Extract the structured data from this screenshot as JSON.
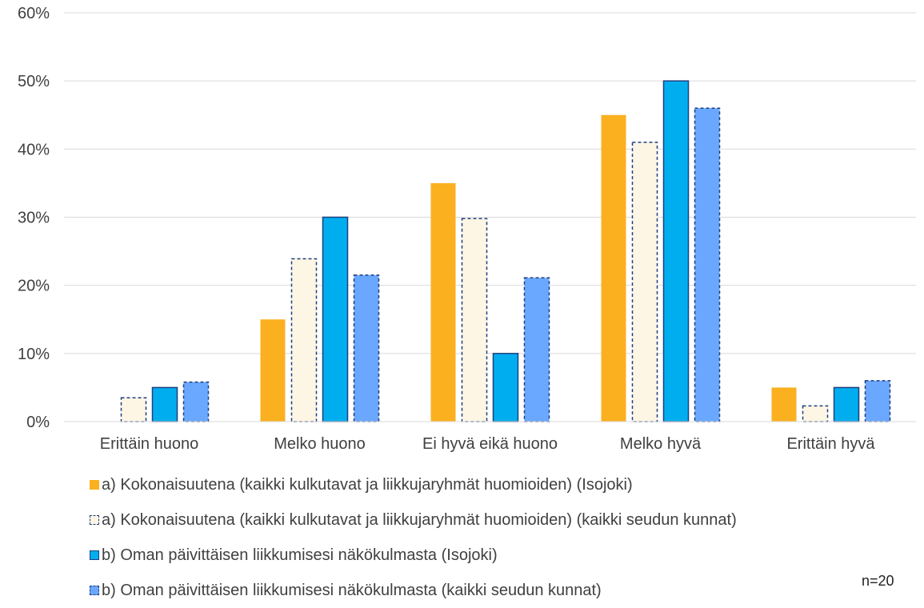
{
  "chart_data": {
    "type": "bar",
    "categories": [
      "Erittäin huono",
      "Melko huono",
      "Ei hyvä eikä huono",
      "Melko hyvä",
      "Erittäin hyvä"
    ],
    "series": [
      {
        "name": "a) Kokonaisuutena (kaikki kulkutavat ja liikkujaryhmät huomioiden) (Isojoki)",
        "values": [
          0,
          15,
          35,
          45,
          5
        ],
        "fill": "#FBB01F",
        "stroke": "none",
        "dashed": false
      },
      {
        "name": "a) Kokonaisuutena (kaikki kulkutavat ja liikkujaryhmät huomioiden) (kaikki seudun kunnat)",
        "values": [
          3.5,
          23.9,
          29.8,
          41,
          2.3
        ],
        "fill": "#FEF6E4",
        "stroke": "#1F3F7F",
        "dashed": true
      },
      {
        "name": "b) Oman päivittäisen liikkumisesi näkökulmasta (Isojoki)",
        "values": [
          5,
          30,
          10,
          50,
          5
        ],
        "fill": "#00AEEF",
        "stroke": "#1F3F7F",
        "dashed": false
      },
      {
        "name": "b) Oman päivittäisen liikkumisesi näkökulmasta (kaikki seudun kunnat)",
        "values": [
          5.8,
          21.5,
          21.1,
          46,
          6
        ],
        "fill": "#6AA8FF",
        "stroke": "#1F3F7F",
        "dashed": true
      }
    ],
    "ylim": [
      0,
      60
    ],
    "yticks": [
      "0%",
      "10%",
      "20%",
      "30%",
      "40%",
      "50%",
      "60%"
    ],
    "grid": true,
    "legend_position": "bottom",
    "note": "n=20"
  }
}
